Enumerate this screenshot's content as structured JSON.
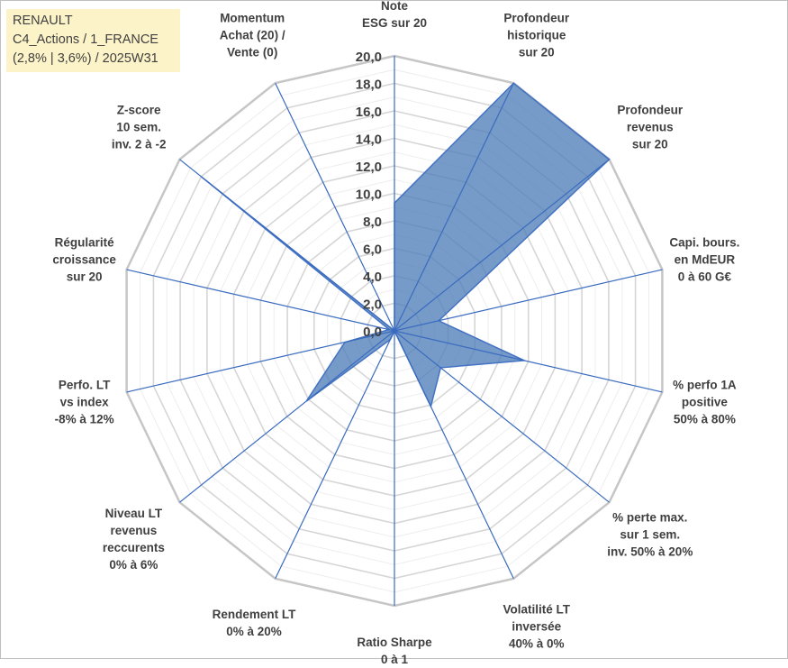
{
  "title": {
    "line1": "RENAULT",
    "line2": "C4_Actions / 1_FRANCE",
    "line3": "(2,8% | 3,6%) / 2025W31"
  },
  "chart_data": {
    "type": "radar",
    "rmax": 20,
    "tick_step": 2,
    "tick_labels": [
      "0,0",
      "2,0",
      "4,0",
      "6,0",
      "8,0",
      "10,0",
      "12,0",
      "14,0",
      "16,0",
      "18,0",
      "20,0"
    ],
    "fill_color": "#4f7fb8",
    "axes": [
      {
        "lines": [
          "Note",
          "ESG sur 20"
        ],
        "value": 9.3
      },
      {
        "lines": [
          "Profondeur",
          "historique",
          "sur 20"
        ],
        "value": 20.0
      },
      {
        "lines": [
          "Profondeur",
          "revenus",
          "sur 20"
        ],
        "value": 20.0
      },
      {
        "lines": [
          "Capi. bours.",
          "en MdEUR",
          "0 à 60 G€"
        ],
        "value": 3.3
      },
      {
        "lines": [
          "% perfo 1A",
          "positive",
          "50% à 80%"
        ],
        "value": 9.7
      },
      {
        "lines": [
          "% perte max.",
          "sur 1 sem.",
          "inv. 50% à 20%"
        ],
        "value": 4.3
      },
      {
        "lines": [
          "Volatilité LT",
          "inversée",
          "40% à 0%"
        ],
        "value": 6.1
      },
      {
        "lines": [
          "Ratio Sharpe",
          "0 à 1"
        ],
        "value": 0.0
      },
      {
        "lines": [
          "Rendement LT",
          "0% à 20%"
        ],
        "value": 0.7
      },
      {
        "lines": [
          "Niveau LT",
          "revenus",
          "reccurents",
          "0% à 6%"
        ],
        "value": 8.2
      },
      {
        "lines": [
          "Perfo. LT",
          "vs index",
          "-8% à 12%"
        ],
        "value": 3.7
      },
      {
        "lines": [
          "Régularité",
          "croissance",
          "sur 20"
        ],
        "value": 0.4
      },
      {
        "lines": [
          "Z-score",
          "10 sem.",
          "inv. 2 à -2"
        ],
        "value": 18.0
      },
      {
        "lines": [
          "Momentum",
          "Achat (20) /",
          "Vente (0)"
        ],
        "value": 0.0
      }
    ]
  }
}
